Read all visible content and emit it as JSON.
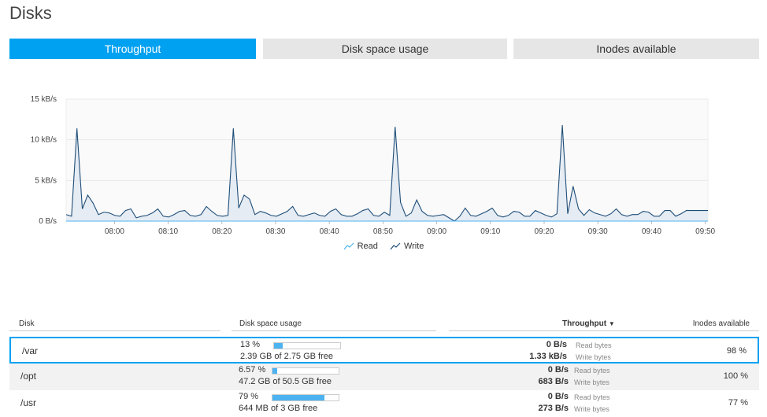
{
  "page": {
    "title": "Disks"
  },
  "tabs": [
    {
      "label": "Throughput",
      "active": true
    },
    {
      "label": "Disk space usage",
      "active": false
    },
    {
      "label": "Inodes available",
      "active": false
    }
  ],
  "colors": {
    "accent": "#00a1f1",
    "tab_inactive": "#e6e6e6",
    "write_line": "#1f4e79",
    "read_line": "#4db3f0",
    "bar_fill": "#4db3f0"
  },
  "chart_data": {
    "type": "area",
    "y_ticks": [
      "15 kB/s",
      "10 kB/s",
      "5 kB/s",
      "0 B/s"
    ],
    "ylim": [
      0,
      15
    ],
    "x_ticks": [
      "08:00",
      "08:10",
      "08:20",
      "08:30",
      "08:40",
      "08:50",
      "09:00",
      "09:10",
      "09:20",
      "09:30",
      "09:40",
      "09:50"
    ],
    "x_start_minute": 471,
    "x_end_minute": 590.5,
    "series": [
      {
        "name": "Read",
        "values": [
          0,
          0,
          0,
          0,
          0,
          0,
          0,
          0,
          0,
          0,
          0,
          0,
          0,
          0,
          0,
          0,
          0,
          0,
          0,
          0,
          0,
          0,
          0,
          0,
          0,
          0,
          0,
          0,
          0,
          0,
          0,
          0,
          0,
          0,
          0,
          0,
          0,
          0,
          0,
          0,
          0,
          0,
          0,
          0,
          0,
          0,
          0,
          0,
          0,
          0,
          0,
          0,
          0,
          0,
          0,
          0,
          0,
          0,
          0,
          0,
          0,
          0,
          0,
          0,
          0,
          0,
          0,
          0,
          0,
          0,
          0,
          0,
          0,
          0,
          0,
          0,
          0,
          0,
          0,
          0,
          0,
          0,
          0,
          0,
          0,
          0,
          0,
          0,
          0,
          0,
          0,
          0,
          0,
          0,
          0,
          0,
          0,
          0,
          0,
          0,
          0,
          0,
          0,
          0,
          0,
          0,
          0,
          0,
          0,
          0,
          0,
          0,
          0,
          0,
          0,
          0,
          0,
          0,
          0,
          0
        ]
      },
      {
        "name": "Write",
        "values": [
          0.8,
          0.6,
          11.4,
          1.5,
          3.2,
          2.2,
          0.8,
          1.1,
          1.0,
          0.7,
          0.6,
          1.3,
          1.5,
          0.4,
          0.6,
          0.7,
          1.0,
          1.5,
          0.6,
          0.5,
          0.8,
          1.2,
          1.3,
          0.7,
          0.6,
          0.8,
          1.8,
          1.2,
          0.7,
          0.6,
          0.7,
          11.4,
          1.6,
          3.2,
          2.7,
          0.8,
          1.2,
          1.0,
          0.7,
          0.6,
          0.9,
          1.2,
          1.8,
          0.7,
          0.6,
          0.8,
          1.0,
          0.7,
          0.6,
          1.2,
          1.5,
          0.8,
          0.6,
          0.6,
          0.9,
          1.3,
          1.5,
          0.7,
          0.6,
          1.1,
          0.7,
          11.6,
          2.3,
          0.6,
          1.0,
          2.6,
          1.2,
          0.7,
          0.6,
          0.7,
          0.8,
          0.4,
          0.0,
          0.6,
          1.6,
          0.7,
          0.6,
          0.9,
          1.2,
          1.6,
          0.7,
          0.5,
          0.7,
          1.2,
          1.1,
          0.6,
          0.6,
          1.3,
          1.0,
          0.7,
          0.5,
          0.9,
          11.8,
          0.9,
          4.3,
          1.5,
          0.7,
          1.4,
          1.0,
          0.8,
          0.6,
          0.9,
          1.5,
          0.8,
          0.6,
          0.8,
          0.8,
          1.2,
          1.1,
          0.6,
          0.6,
          1.3,
          1.3,
          0.6,
          0.9,
          1.3,
          1.3,
          1.3,
          1.3,
          1.3
        ]
      }
    ],
    "legend": [
      "Read",
      "Write"
    ]
  },
  "table": {
    "headers": {
      "disk": "Disk",
      "space": "Disk space usage",
      "throughput": "Throughput",
      "sort_arrow": "▼",
      "inodes": "Inodes available"
    },
    "rows": [
      {
        "disk": "/var",
        "pct": "13 %",
        "pct_value": 13,
        "free": "2.39 GB of 2.75 GB free",
        "read": "0 B/s",
        "read_label": "Read bytes",
        "write": "1.33 kB/s",
        "write_label": "Write bytes",
        "inodes": "98 %"
      },
      {
        "disk": "/opt",
        "pct": "6.57 %",
        "pct_value": 6.57,
        "free": "47.2 GB of 50.5 GB free",
        "read": "0 B/s",
        "read_label": "Read bytes",
        "write": "683 B/s",
        "write_label": "Write bytes",
        "inodes": "100 %"
      },
      {
        "disk": "/usr",
        "pct": "79 %",
        "pct_value": 79,
        "free": "644 MB of 3 GB free",
        "read": "0 B/s",
        "read_label": "Read bytes",
        "write": "273 B/s",
        "write_label": "Write bytes",
        "inodes": "77 %"
      }
    ]
  }
}
